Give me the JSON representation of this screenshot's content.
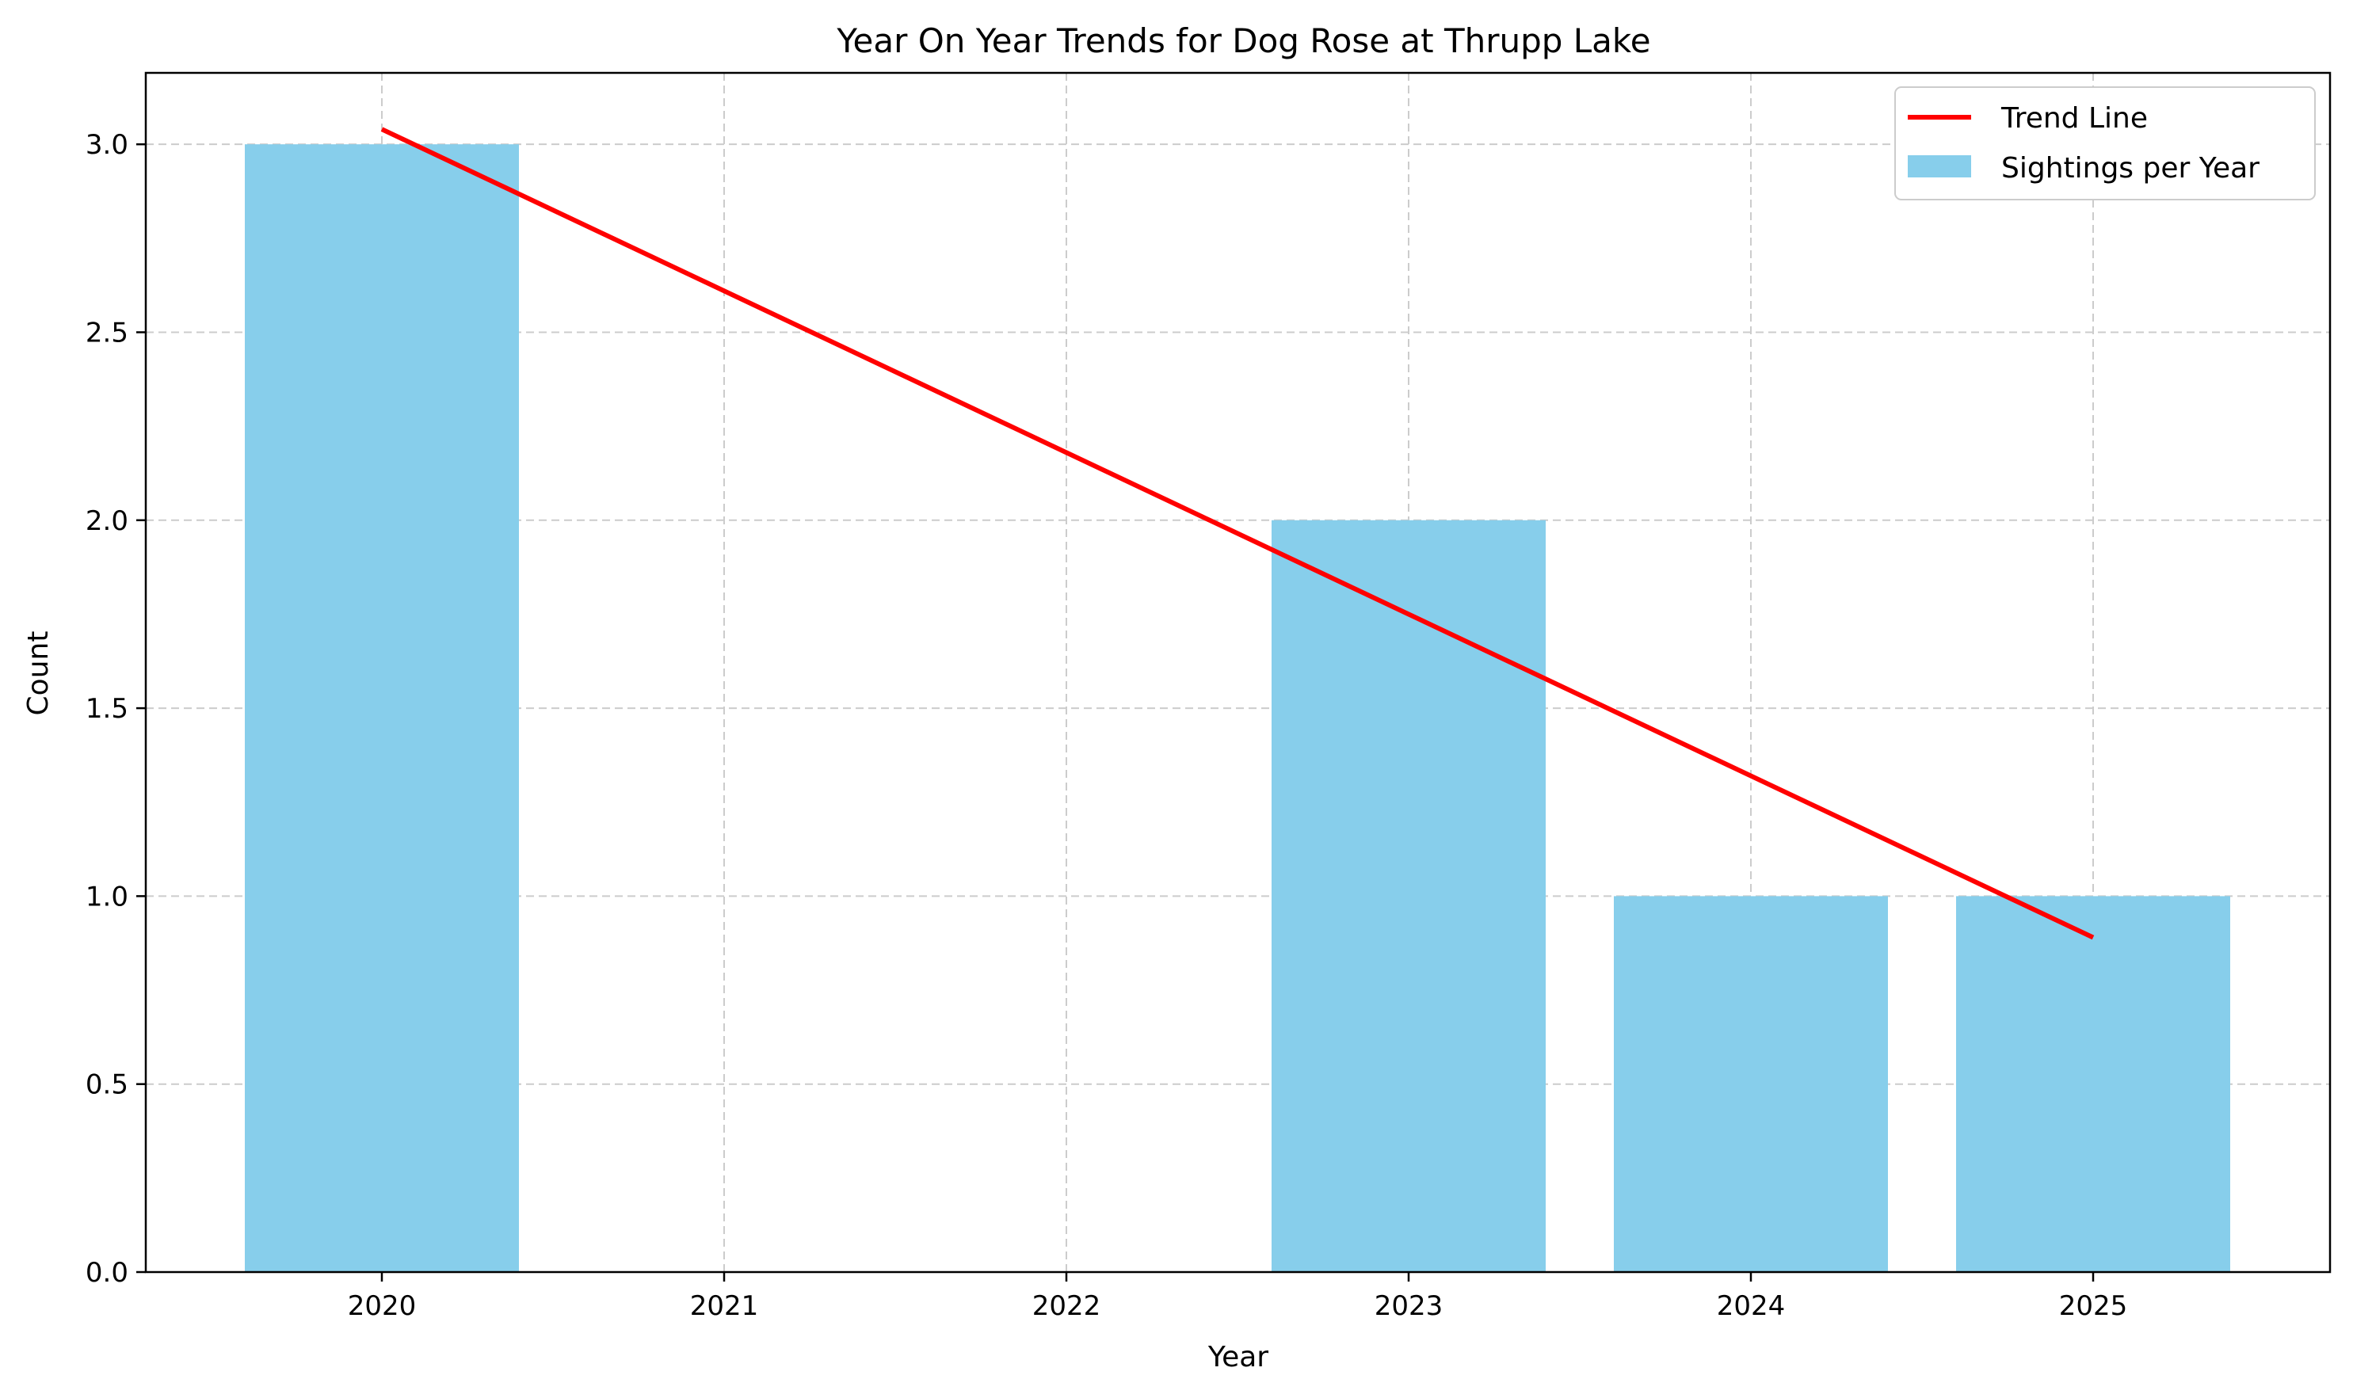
{
  "chart_data": {
    "type": "bar",
    "title": "Year On Year Trends for Dog Rose at Thrupp Lake",
    "xlabel": "Year",
    "ylabel": "Count",
    "categories": [
      "2020",
      "2021",
      "2022",
      "2023",
      "2024",
      "2025"
    ],
    "series": [
      {
        "name": "Sightings per Year",
        "type": "bar",
        "color": "#87ceeb",
        "values": [
          3,
          0,
          0,
          2,
          1,
          1
        ]
      },
      {
        "name": "Trend Line",
        "type": "line",
        "color": "#ff0000",
        "start": {
          "x": "2020",
          "y": 3.04
        },
        "end": {
          "x": "2025",
          "y": 0.89
        }
      }
    ],
    "ylim": [
      0,
      3.19
    ],
    "yticks": [
      "0.0",
      "0.5",
      "1.0",
      "1.5",
      "2.0",
      "2.5",
      "3.0"
    ],
    "ytick_values": [
      0,
      0.5,
      1.0,
      1.5,
      2.0,
      2.5,
      3.0
    ],
    "grid": true,
    "legend_position": "top-right"
  }
}
